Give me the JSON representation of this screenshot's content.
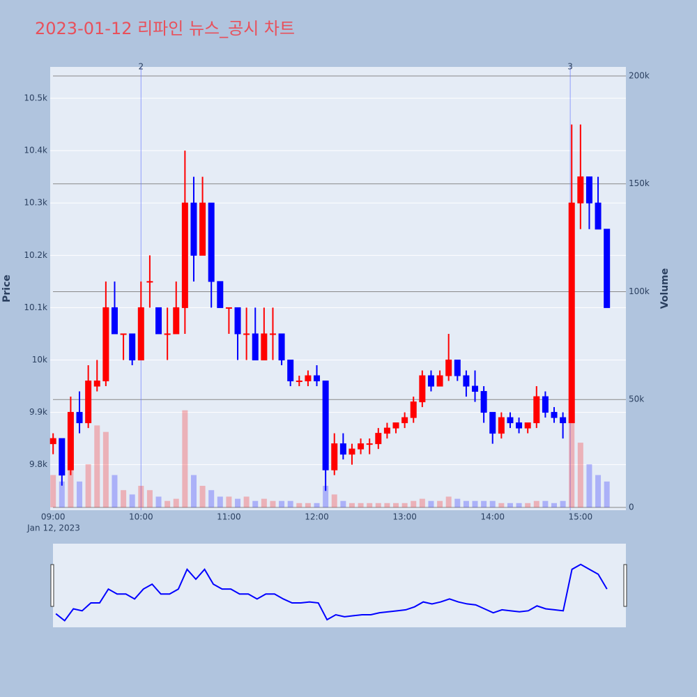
{
  "chart_data": {
    "type": "candlestick",
    "title": "2023-01-12 리파인 뉴스_공시 차트",
    "y_label": "Price",
    "y2_label": "Volume",
    "x_date_label": "Jan 12, 2023",
    "increasing_color": "#ff0000",
    "decreasing_color": "#0000ff",
    "x": [
      "09:00",
      "09:06",
      "09:12",
      "09:18",
      "09:24",
      "09:30",
      "09:36",
      "09:42",
      "09:48",
      "09:54",
      "10:00",
      "10:06",
      "10:12",
      "10:18",
      "10:24",
      "10:30",
      "10:36",
      "10:42",
      "10:48",
      "10:54",
      "11:00",
      "11:06",
      "11:12",
      "11:18",
      "11:24",
      "11:30",
      "11:36",
      "11:42",
      "11:48",
      "11:54",
      "12:00",
      "12:06",
      "12:12",
      "12:18",
      "12:24",
      "12:30",
      "12:36",
      "12:42",
      "12:48",
      "12:54",
      "13:00",
      "13:06",
      "13:12",
      "13:18",
      "13:24",
      "13:30",
      "13:36",
      "13:42",
      "13:48",
      "13:54",
      "14:00",
      "14:06",
      "14:12",
      "14:18",
      "14:24",
      "14:30",
      "14:36",
      "14:42",
      "14:48",
      "14:54",
      "15:00",
      "15:06",
      "15:12",
      "15:18"
    ],
    "open": [
      9840,
      9850,
      9790,
      9900,
      9880,
      9950,
      9960,
      10100,
      10050,
      10050,
      10000,
      10150,
      10100,
      10050,
      10050,
      10100,
      10300,
      10200,
      10300,
      10150,
      10100,
      10100,
      10050,
      10050,
      10000,
      10050,
      10050,
      10000,
      9960,
      9960,
      9970,
      9960,
      9790,
      9840,
      9820,
      9830,
      9840,
      9840,
      9860,
      9870,
      9880,
      9890,
      9920,
      9970,
      9950,
      9970,
      10000,
      9970,
      9950,
      9940,
      9900,
      9860,
      9890,
      9880,
      9870,
      9880,
      9930,
      9900,
      9890,
      9880,
      10300,
      10350,
      10300,
      10250
    ],
    "high": [
      9860,
      9850,
      9930,
      9940,
      9990,
      10000,
      10150,
      10150,
      10050,
      10050,
      10150,
      10200,
      10100,
      10100,
      10150,
      10400,
      10350,
      10350,
      10300,
      10150,
      10100,
      10100,
      10100,
      10100,
      10100,
      10100,
      10050,
      10000,
      9970,
      9980,
      9990,
      9960,
      9860,
      9860,
      9840,
      9850,
      9850,
      9870,
      9880,
      9880,
      9900,
      9930,
      9980,
      9980,
      9980,
      10050,
      10000,
      9980,
      9980,
      9950,
      9900,
      9900,
      9900,
      9890,
      9880,
      9950,
      9940,
      9910,
      9900,
      10450,
      10450,
      10350,
      10350,
      10250
    ],
    "low": [
      9820,
      9760,
      9780,
      9860,
      9870,
      9940,
      9950,
      10050,
      10000,
      9990,
      10000,
      10100,
      10050,
      10000,
      10050,
      10050,
      10150,
      10200,
      10100,
      10100,
      10050,
      10000,
      10000,
      10000,
      10000,
      10000,
      9990,
      9950,
      9950,
      9950,
      9950,
      9750,
      9780,
      9810,
      9800,
      9820,
      9820,
      9830,
      9850,
      9860,
      9870,
      9880,
      9910,
      9940,
      9950,
      9960,
      9960,
      9930,
      9920,
      9880,
      9840,
      9850,
      9870,
      9860,
      9860,
      9870,
      9890,
      9880,
      9850,
      9880,
      10250,
      10250,
      10250,
      10100
    ],
    "close": [
      9850,
      9780,
      9900,
      9880,
      9960,
      9960,
      10100,
      10050,
      10050,
      10000,
      10100,
      10150,
      10050,
      10050,
      10100,
      10300,
      10200,
      10300,
      10150,
      10100,
      10100,
      10050,
      10050,
      10000,
      10050,
      10050,
      10000,
      9960,
      9960,
      9970,
      9960,
      9790,
      9840,
      9820,
      9830,
      9840,
      9840,
      9860,
      9870,
      9880,
      9890,
      9920,
      9970,
      9950,
      9970,
      10000,
      9970,
      9950,
      9940,
      9900,
      9860,
      9890,
      9880,
      9870,
      9880,
      9930,
      9900,
      9890,
      9880,
      10300,
      10350,
      10300,
      10250,
      10100
    ],
    "volume": [
      15000,
      12000,
      25000,
      12000,
      20000,
      38000,
      35000,
      15000,
      8000,
      6000,
      10000,
      8000,
      5000,
      3000,
      4000,
      45000,
      15000,
      10000,
      8000,
      5000,
      5000,
      4000,
      5000,
      3000,
      4000,
      3000,
      3000,
      3000,
      2000,
      2000,
      2000,
      10000,
      6000,
      3000,
      2000,
      2000,
      2000,
      2000,
      2000,
      2000,
      2000,
      3000,
      4000,
      3000,
      3000,
      5000,
      4000,
      3000,
      3000,
      3000,
      3000,
      2000,
      2000,
      2000,
      2000,
      3000,
      3000,
      2000,
      3000,
      60000,
      30000,
      20000,
      15000,
      12000
    ],
    "xlim": [
      "08:58",
      "15:31"
    ],
    "xticks": [
      "09:00",
      "10:00",
      "11:00",
      "12:00",
      "13:00",
      "14:00",
      "15:00"
    ],
    "ylim": [
      9713,
      10560
    ],
    "yticks": [
      {
        "value": 9800,
        "label": "9.8k"
      },
      {
        "value": 9900,
        "label": "9.9k"
      },
      {
        "value": 10000,
        "label": "10k"
      },
      {
        "value": 10100,
        "label": "10.1k"
      },
      {
        "value": 10200,
        "label": "10.2k"
      },
      {
        "value": 10300,
        "label": "10.3k"
      },
      {
        "value": 10400,
        "label": "10.4k"
      },
      {
        "value": 10500,
        "label": "10.5k"
      }
    ],
    "y2lim": [
      -1300,
      204200
    ],
    "y2ticks": [
      0,
      {
        "value": 50000,
        "label": "50k"
      },
      {
        "value": 100000,
        "label": "100k"
      },
      {
        "value": 150000,
        "label": "150k"
      },
      {
        "value": 200000,
        "label": "200k"
      }
    ],
    "events": [
      {
        "x": "10:00",
        "label": "2"
      },
      {
        "x": "14:53",
        "label": "3"
      }
    ]
  }
}
